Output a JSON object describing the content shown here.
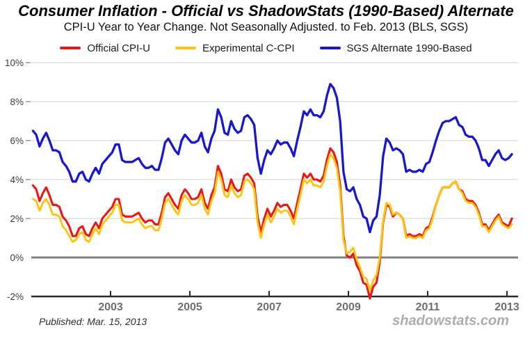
{
  "header": {
    "title": "Consumer Inflation - Official vs ShadowStats (1990-Based) Alternate",
    "subtitle": "CPI-U Year to Year Change. Not Seasonally Adjusted. to Feb. 2013  (BLS, SGS)"
  },
  "legend": [
    {
      "label": "Official CPI-U",
      "color": "#ed1515"
    },
    {
      "label": "Experimental C-CPI",
      "color": "#ffc40d"
    },
    {
      "label": "SGS  Alternate 1990-Based",
      "color": "#1717cf"
    }
  ],
  "footer": {
    "published": "Published: Mar. 15, 2013",
    "watermark": "shadowstats.com"
  },
  "chart_data": {
    "type": "line",
    "title": "Consumer Inflation - Official vs ShadowStats (1990-Based) Alternate",
    "subtitle": "CPI-U Year to Year Change. Not Seasonally Adjusted. to Feb. 2013 (BLS, SGS)",
    "x_unit": "month",
    "x_range": [
      "2001-01",
      "2013-02"
    ],
    "xlim": [
      2001.0,
      2013.35
    ],
    "ylim": [
      -2,
      10
    ],
    "grid": "horizontal",
    "legend_position": "top",
    "x_ticks": [
      2003,
      2005,
      2007,
      2009,
      2011,
      2013
    ],
    "y_ticks": [
      {
        "label": "10%",
        "value": 10
      },
      {
        "label": "8%",
        "value": 8
      },
      {
        "label": "6%",
        "value": 6
      },
      {
        "label": "4%",
        "value": 4
      },
      {
        "label": "2%",
        "value": 2
      },
      {
        "label": "0%",
        "value": 0
      },
      {
        "label": "-2%",
        "value": -2
      }
    ],
    "zero_line_color": "#808080",
    "axis_color": "#2b2b2b",
    "gridline_color": "#d0d0d0",
    "series": [
      {
        "name": "SGS Alternate 1990-Based",
        "color": "#1717cf",
        "values": [
          6.5,
          6.3,
          5.7,
          6.1,
          6.4,
          6.0,
          5.5,
          5.5,
          5.4,
          4.9,
          4.7,
          4.4,
          3.9,
          3.9,
          4.3,
          4.4,
          4.0,
          3.9,
          4.3,
          4.6,
          4.3,
          4.8,
          5.0,
          5.2,
          5.4,
          5.8,
          5.8,
          5.0,
          4.9,
          4.9,
          4.9,
          5.0,
          5.1,
          4.8,
          4.6,
          4.6,
          4.7,
          4.5,
          4.5,
          5.1,
          5.9,
          6.1,
          5.8,
          5.5,
          5.3,
          6.0,
          6.3,
          6.1,
          5.9,
          5.9,
          6.0,
          6.4,
          5.7,
          5.4,
          6.1,
          6.5,
          7.6,
          7.2,
          6.4,
          6.3,
          7.0,
          6.6,
          6.4,
          6.5,
          7.2,
          7.3,
          7.1,
          6.8,
          5.1,
          4.3,
          5.0,
          5.5,
          5.3,
          5.6,
          6.0,
          5.8,
          5.9,
          5.9,
          5.6,
          5.2,
          6.0,
          6.7,
          7.5,
          7.3,
          7.6,
          7.3,
          7.3,
          7.2,
          7.5,
          8.3,
          8.9,
          8.7,
          8.2,
          7.0,
          4.4,
          3.5,
          3.4,
          3.6,
          3.0,
          2.7,
          2.1,
          2.0,
          1.3,
          1.9,
          2.1,
          3.2,
          5.2,
          6.1,
          5.9,
          5.5,
          5.6,
          5.5,
          5.3,
          4.4,
          4.5,
          4.4,
          4.4,
          4.5,
          4.4,
          4.8,
          4.9,
          5.4,
          6.0,
          6.5,
          6.9,
          7.0,
          7.0,
          7.1,
          7.2,
          6.8,
          6.7,
          6.3,
          6.2,
          6.2,
          6.0,
          5.6,
          5.0,
          5.0,
          4.7,
          5.0,
          5.3,
          5.5,
          5.1,
          5.0,
          5.1,
          5.3
        ]
      },
      {
        "name": "Official CPI-U",
        "color": "#ed1515",
        "values": [
          3.7,
          3.5,
          2.9,
          3.3,
          3.6,
          3.2,
          2.7,
          2.7,
          2.6,
          2.1,
          1.9,
          1.6,
          1.1,
          1.1,
          1.5,
          1.6,
          1.2,
          1.1,
          1.5,
          1.8,
          1.5,
          2.0,
          2.2,
          2.4,
          2.6,
          3.0,
          3.0,
          2.2,
          2.1,
          2.1,
          2.1,
          2.2,
          2.3,
          2.0,
          1.8,
          1.9,
          1.9,
          1.7,
          1.7,
          2.3,
          3.1,
          3.3,
          3.0,
          2.7,
          2.5,
          3.2,
          3.5,
          3.3,
          3.0,
          3.0,
          3.1,
          3.5,
          2.8,
          2.5,
          3.2,
          3.6,
          4.7,
          4.3,
          3.5,
          3.4,
          4.0,
          3.6,
          3.4,
          3.5,
          4.2,
          4.3,
          4.1,
          3.8,
          2.1,
          1.3,
          2.0,
          2.5,
          2.1,
          2.4,
          2.8,
          2.6,
          2.7,
          2.7,
          2.4,
          2.0,
          2.8,
          3.5,
          4.3,
          4.1,
          4.3,
          4.0,
          4.0,
          3.9,
          4.2,
          5.0,
          5.6,
          5.4,
          4.9,
          3.7,
          1.1,
          0.1,
          0.0,
          0.2,
          -0.4,
          -0.7,
          -1.3,
          -1.4,
          -2.1,
          -1.5,
          -1.3,
          -0.2,
          1.8,
          2.7,
          2.6,
          2.1,
          2.3,
          2.2,
          2.0,
          1.1,
          1.2,
          1.1,
          1.1,
          1.2,
          1.1,
          1.5,
          1.6,
          2.1,
          2.7,
          3.2,
          3.6,
          3.6,
          3.6,
          3.8,
          3.9,
          3.5,
          3.4,
          3.0,
          2.9,
          2.9,
          2.7,
          2.3,
          1.7,
          1.7,
          1.4,
          1.7,
          2.0,
          2.2,
          1.8,
          1.7,
          1.6,
          2.0
        ]
      },
      {
        "name": "Experimental C-CPI",
        "color": "#ffc40d",
        "values": [
          3.0,
          2.9,
          2.4,
          2.8,
          3.0,
          2.7,
          2.2,
          2.2,
          2.1,
          1.6,
          1.4,
          1.1,
          0.8,
          0.9,
          1.2,
          1.3,
          0.9,
          0.8,
          1.2,
          1.5,
          1.2,
          1.7,
          1.9,
          2.1,
          2.3,
          2.7,
          2.7,
          1.9,
          1.8,
          1.8,
          1.8,
          1.9,
          2.0,
          1.7,
          1.5,
          1.6,
          1.6,
          1.4,
          1.4,
          2.0,
          2.8,
          3.0,
          2.7,
          2.4,
          2.2,
          2.9,
          3.2,
          3.0,
          2.7,
          2.7,
          2.8,
          3.2,
          2.5,
          2.2,
          2.9,
          3.3,
          4.4,
          4.0,
          3.2,
          3.1,
          3.7,
          3.3,
          3.1,
          3.2,
          3.9,
          4.0,
          3.8,
          3.5,
          1.8,
          1.0,
          1.7,
          2.2,
          1.8,
          2.1,
          2.5,
          2.3,
          2.4,
          2.4,
          2.1,
          1.7,
          2.5,
          3.2,
          4.0,
          3.8,
          4.0,
          3.7,
          3.7,
          3.6,
          3.9,
          4.7,
          5.3,
          5.1,
          4.6,
          3.4,
          0.9,
          0.2,
          0.3,
          0.5,
          -0.1,
          -0.5,
          -1.0,
          -1.1,
          -1.7,
          -1.2,
          -0.9,
          0.0,
          1.9,
          2.8,
          2.7,
          2.2,
          2.3,
          2.2,
          2.0,
          1.0,
          1.1,
          1.0,
          1.0,
          1.1,
          1.0,
          1.4,
          1.5,
          2.0,
          2.7,
          3.2,
          3.6,
          3.6,
          3.6,
          3.8,
          3.9,
          3.5,
          3.3,
          2.9,
          2.8,
          2.8,
          2.6,
          2.2,
          1.6,
          1.6,
          1.3,
          1.6,
          1.9,
          2.1,
          1.7,
          1.6,
          1.5,
          1.7
        ]
      }
    ]
  }
}
